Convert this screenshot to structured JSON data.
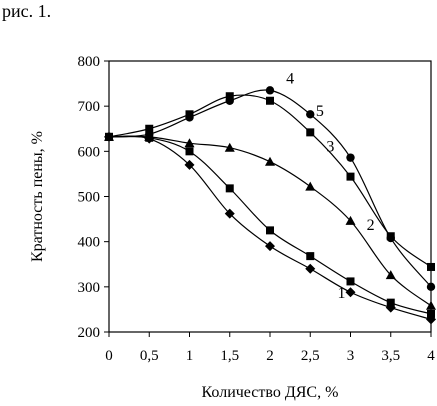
{
  "caption": "рис. 1.",
  "chart_data": {
    "type": "line",
    "title": "",
    "xlabel": "Количество ДЯС, %",
    "ylabel": "Кратность пены, %",
    "xlim": [
      0,
      4
    ],
    "ylim": [
      200,
      800
    ],
    "x_ticks": [
      0,
      0.5,
      1,
      1.5,
      2,
      2.5,
      3,
      3.5,
      4
    ],
    "x_tick_labels": [
      "0",
      "0,5",
      "1",
      "1,5",
      "2",
      "2,5",
      "3",
      "3,5",
      "4"
    ],
    "y_ticks": [
      200,
      300,
      400,
      500,
      600,
      700,
      800
    ],
    "y_tick_labels": [
      "200",
      "300",
      "400",
      "500",
      "600",
      "700",
      "800"
    ],
    "grid": false,
    "series": [
      {
        "name": "1",
        "marker": "diamond",
        "x": [
          0,
          0.5,
          1,
          1.5,
          2,
          2.5,
          3,
          3.5,
          4
        ],
        "y": [
          632,
          628,
          570,
          462,
          390,
          340,
          288,
          254,
          228
        ]
      },
      {
        "name": "2",
        "marker": "square",
        "x": [
          0,
          0.5,
          1,
          1.5,
          2,
          2.5,
          3,
          3.5,
          4
        ],
        "y": [
          632,
          630,
          600,
          518,
          425,
          368,
          312,
          265,
          240
        ]
      },
      {
        "name": "3",
        "marker": "triangle",
        "x": [
          0,
          0.5,
          1,
          1.5,
          2,
          2.5,
          3,
          3.5,
          4
        ],
        "y": [
          632,
          632,
          618,
          608,
          577,
          522,
          446,
          326,
          258
        ]
      },
      {
        "name": "4",
        "marker": "circle",
        "x": [
          0,
          0.5,
          1,
          1.5,
          2,
          2.5,
          3,
          3.5,
          4
        ],
        "y": [
          632,
          638,
          675,
          712,
          735,
          682,
          586,
          408,
          300
        ]
      },
      {
        "name": "5",
        "marker": "square",
        "x": [
          0,
          0.5,
          1,
          1.5,
          2,
          2.5,
          3,
          3.5,
          4
        ],
        "y": [
          632,
          650,
          682,
          722,
          712,
          642,
          544,
          412,
          344
        ]
      }
    ]
  }
}
